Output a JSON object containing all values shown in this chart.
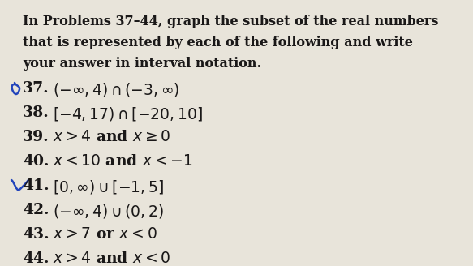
{
  "bg_color": "#e8e4da",
  "text_color": "#1a1818",
  "title_lines": [
    "In Problems 37–44, graph the subset of the real numbers",
    "that is represented by each of the following and write",
    "your answer in interval notation."
  ],
  "problems": [
    {
      "num": "37.",
      "text": "$(-\\infty, 4)\\cap(-3, \\infty)$"
    },
    {
      "num": "38.",
      "text": "$[-4, 17)\\cap[-20, 10]$"
    },
    {
      "num": "39.",
      "text": "$x>4$ and $x\\geq 0$"
    },
    {
      "num": "40.",
      "text": "$x<10$ and $x<-1$"
    },
    {
      "num": "41.",
      "text": "$[0, \\infty)\\cup[-1, 5]$"
    },
    {
      "num": "42.",
      "text": "$(-\\infty, 4)\\cup(0, 2)$"
    },
    {
      "num": "43.",
      "text": "$x>7$ or $x<0$"
    },
    {
      "num": "44.",
      "text": "$x>4$ and $x<0$"
    }
  ],
  "title_fontsize": 11.5,
  "problem_fontsize": 13.5,
  "pen_color": "#2244bb",
  "pen_color2": "#1133aa"
}
